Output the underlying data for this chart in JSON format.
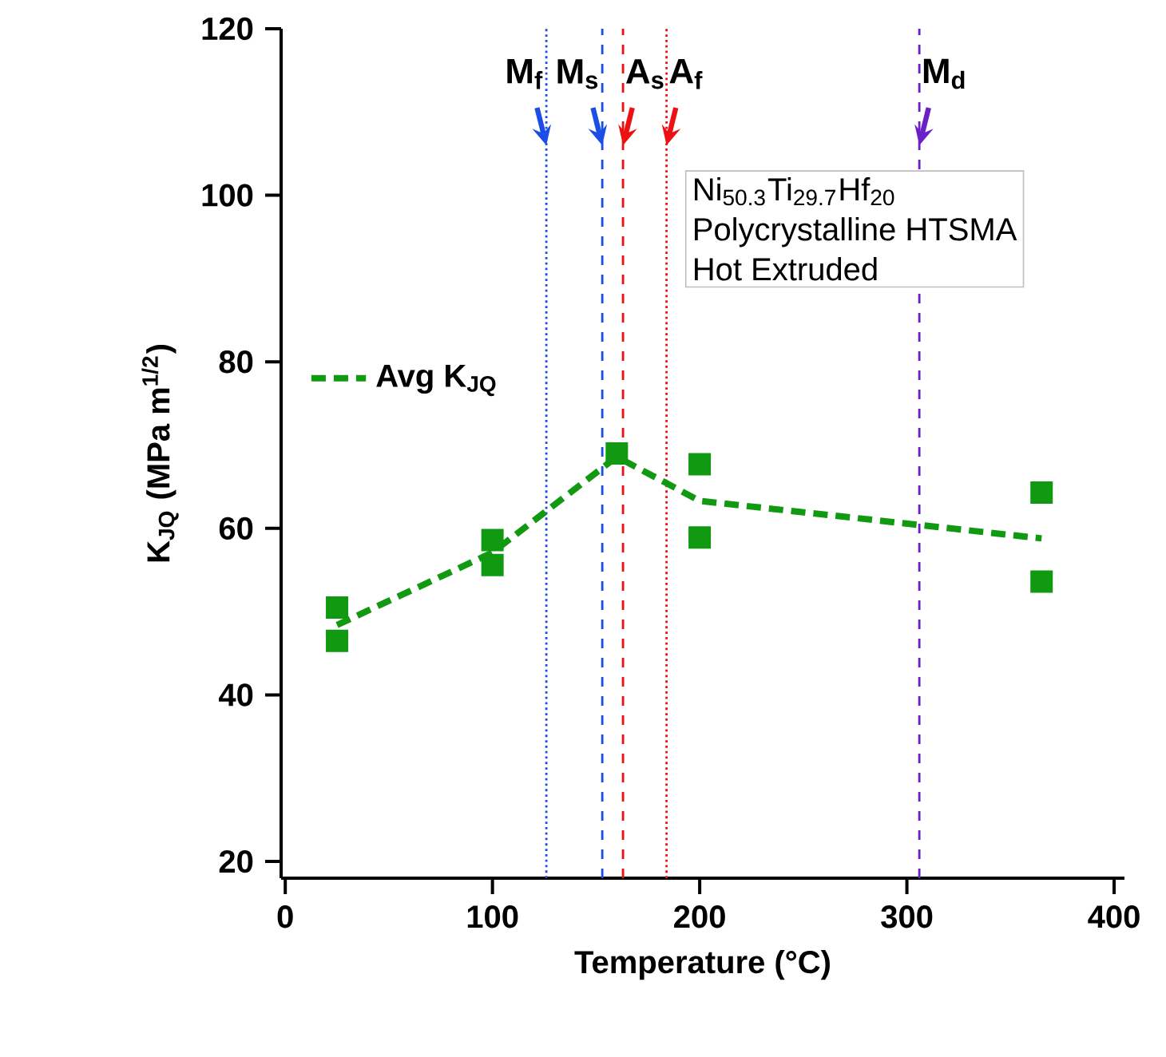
{
  "chart_data": {
    "type": "scatter",
    "xlabel": "Temperature (°C)",
    "ylabel": "K$_{JQ}$ (MPa m$^{1/2}$)",
    "xlim": [
      -2,
      405
    ],
    "ylim": [
      18,
      120
    ],
    "xticks": [
      0,
      100,
      200,
      300,
      400
    ],
    "yticks": [
      20,
      40,
      60,
      80,
      100,
      120
    ],
    "grid": false,
    "legend": "top left",
    "marker": "square",
    "series": [
      {
        "color": "#119911",
        "x": [
          25,
          25,
          100,
          100,
          160,
          200,
          200,
          365,
          365
        ],
        "values": [
          50.5,
          46.5,
          58.6,
          55.6,
          69.0,
          67.7,
          58.9,
          64.3,
          53.6
        ]
      },
      {
        "type": "line",
        "name": "Avg K$_{JQ}$",
        "color": "#119911",
        "line_style": "dashed",
        "marker": "none",
        "x": [
          25,
          100,
          160,
          200,
          365
        ],
        "values": [
          48.4,
          57.1,
          68.6,
          63.3,
          58.8
        ]
      }
    ],
    "ref_lines": [
      {
        "axis": "x",
        "value": 126,
        "label": "M$_{f}$",
        "color": "#1a4ee6",
        "line_style": "dotted"
      },
      {
        "axis": "x",
        "value": 153,
        "label": "M$_{s}$",
        "color": "#1a4ee6",
        "line_style": "dashed"
      },
      {
        "axis": "x",
        "value": 163,
        "label": "A$_{s}$",
        "color": "#ee1111",
        "line_style": "dashed"
      },
      {
        "axis": "x",
        "value": 184,
        "label": "A$_{f}$",
        "color": "#ee1111",
        "line_style": "dotted"
      },
      {
        "axis": "x",
        "value": 306,
        "label": "M$_{d}$",
        "color": "#6a1fc8",
        "line_style": "dashed"
      }
    ],
    "annotations": [
      "Ni$_{50.3}$Ti$_{29.7}$Hf$_{20}$",
      "Polycrystalline HTSMA",
      "Hot Extruded"
    ]
  }
}
